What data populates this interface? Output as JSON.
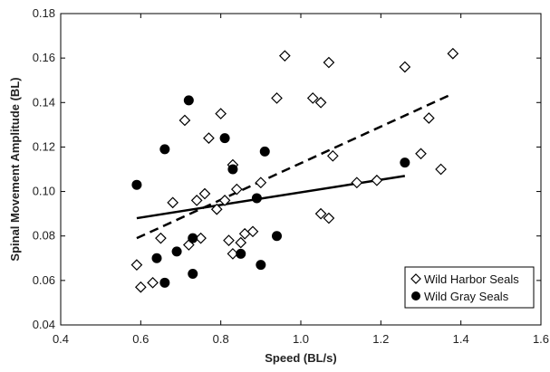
{
  "chart_data": {
    "type": "scatter",
    "title": "",
    "xlabel": "Speed (BL/s)",
    "ylabel": "Spinal Movement Amplitude (BL)",
    "xlim": [
      0.4,
      1.6
    ],
    "ylim": [
      0.04,
      0.18
    ],
    "xticks": [
      0.4,
      0.6,
      0.8,
      1.0,
      1.2,
      1.4,
      1.6
    ],
    "xtick_labels": [
      "0.4",
      "0.6",
      "0.8",
      "1.0",
      "1.2",
      "1.4",
      "1.6"
    ],
    "yticks": [
      0.04,
      0.06,
      0.08,
      0.1,
      0.12,
      0.14,
      0.16,
      0.18
    ],
    "ytick_labels": [
      "0.04",
      "0.06",
      "0.08",
      "0.10",
      "0.12",
      "0.14",
      "0.16",
      "0.18"
    ],
    "grid": false,
    "legend_position": "bottom-right",
    "series": [
      {
        "name": "Wild Harbor Seals",
        "marker": "open-diamond",
        "color": "#000000",
        "points": [
          [
            0.59,
            0.067
          ],
          [
            0.6,
            0.057
          ],
          [
            0.63,
            0.059
          ],
          [
            0.65,
            0.079
          ],
          [
            0.68,
            0.095
          ],
          [
            0.71,
            0.132
          ],
          [
            0.72,
            0.076
          ],
          [
            0.74,
            0.096
          ],
          [
            0.75,
            0.079
          ],
          [
            0.76,
            0.099
          ],
          [
            0.77,
            0.124
          ],
          [
            0.79,
            0.092
          ],
          [
            0.8,
            0.135
          ],
          [
            0.81,
            0.096
          ],
          [
            0.82,
            0.078
          ],
          [
            0.83,
            0.072
          ],
          [
            0.83,
            0.112
          ],
          [
            0.84,
            0.101
          ],
          [
            0.85,
            0.077
          ],
          [
            0.86,
            0.081
          ],
          [
            0.88,
            0.082
          ],
          [
            0.9,
            0.104
          ],
          [
            0.94,
            0.142
          ],
          [
            0.96,
            0.161
          ],
          [
            1.03,
            0.142
          ],
          [
            1.05,
            0.14
          ],
          [
            1.05,
            0.09
          ],
          [
            1.07,
            0.088
          ],
          [
            1.07,
            0.158
          ],
          [
            1.08,
            0.116
          ],
          [
            1.14,
            0.104
          ],
          [
            1.19,
            0.105
          ],
          [
            1.26,
            0.156
          ],
          [
            1.3,
            0.117
          ],
          [
            1.32,
            0.133
          ],
          [
            1.35,
            0.11
          ],
          [
            1.38,
            0.162
          ]
        ]
      },
      {
        "name": "Wild Gray Seals",
        "marker": "filled-circle",
        "color": "#000000",
        "points": [
          [
            0.59,
            0.103
          ],
          [
            0.64,
            0.07
          ],
          [
            0.66,
            0.059
          ],
          [
            0.66,
            0.119
          ],
          [
            0.69,
            0.073
          ],
          [
            0.72,
            0.141
          ],
          [
            0.73,
            0.063
          ],
          [
            0.73,
            0.079
          ],
          [
            0.81,
            0.124
          ],
          [
            0.83,
            0.11
          ],
          [
            0.85,
            0.072
          ],
          [
            0.89,
            0.097
          ],
          [
            0.9,
            0.067
          ],
          [
            0.91,
            0.118
          ],
          [
            0.94,
            0.08
          ],
          [
            1.26,
            0.113
          ]
        ]
      }
    ],
    "trendlines": [
      {
        "series": "Wild Harbor Seals",
        "style": "dashed",
        "x": [
          0.59,
          1.38
        ],
        "y": [
          0.079,
          0.144
        ]
      },
      {
        "series": "Wild Gray Seals",
        "style": "solid",
        "x": [
          0.59,
          1.26
        ],
        "y": [
          0.088,
          0.107
        ]
      }
    ]
  }
}
